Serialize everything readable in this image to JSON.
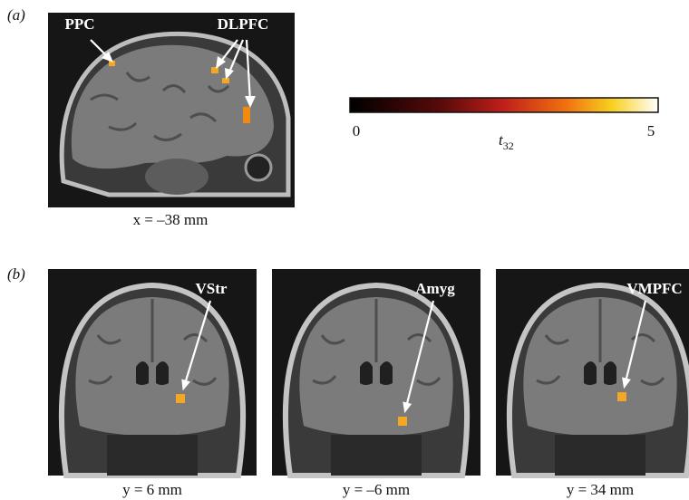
{
  "panel_a": {
    "letter": "(a)",
    "labels": [
      "PPC",
      "DLPFC"
    ],
    "caption": "x = –38 mm"
  },
  "colorbar": {
    "min": 0,
    "max": 5,
    "symbol": "t",
    "subscript": "32"
  },
  "panel_b": {
    "letter": "(b)",
    "images": [
      {
        "label": "VStr",
        "caption": "y = 6 mm"
      },
      {
        "label": "Amyg",
        "caption": "y = –6 mm"
      },
      {
        "label": "VMPFC",
        "caption": "y = 34 mm"
      }
    ]
  }
}
